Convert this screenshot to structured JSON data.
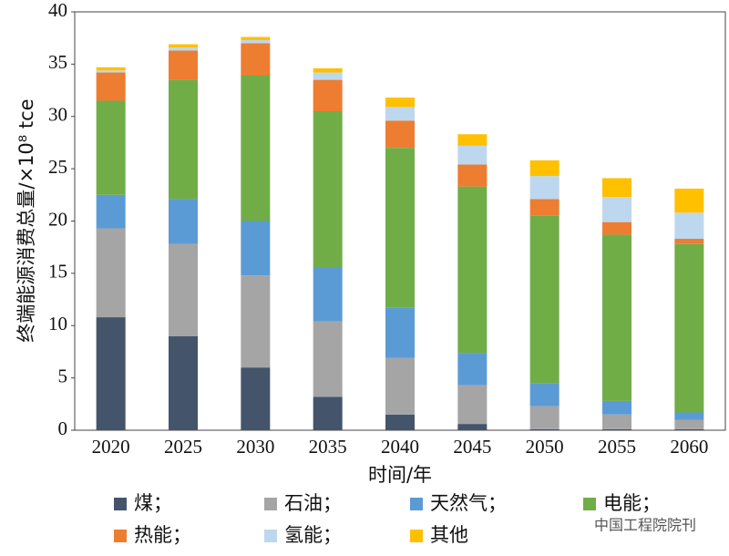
{
  "chart_data": {
    "type": "stacked_bar",
    "y_label": "终端能源消费总量/×10⁸ tce",
    "x_label": "时间/年",
    "categories": [
      "2020",
      "2025",
      "2030",
      "2035",
      "2040",
      "2045",
      "2050",
      "2055",
      "2060"
    ],
    "series": [
      {
        "name": "煤；",
        "color": "#44546a",
        "values": [
          10.8,
          9.0,
          6.0,
          3.2,
          1.5,
          0.6,
          0.1,
          0.1,
          0.1
        ]
      },
      {
        "name": "石油；",
        "color": "#a5a5a5",
        "values": [
          8.5,
          8.8,
          8.8,
          7.2,
          5.4,
          3.7,
          2.2,
          1.4,
          0.9
        ]
      },
      {
        "name": "天然气；",
        "color": "#5b9bd5",
        "values": [
          3.2,
          4.3,
          5.2,
          5.2,
          4.8,
          3.1,
          2.2,
          1.3,
          0.7
        ]
      },
      {
        "name": "电能；",
        "color": "#70ad47",
        "values": [
          9.0,
          11.4,
          13.9,
          14.9,
          15.3,
          15.9,
          16.0,
          15.9,
          16.1
        ]
      },
      {
        "name": "热能；",
        "color": "#ed7d31",
        "values": [
          2.7,
          2.8,
          3.1,
          3.0,
          2.6,
          2.1,
          1.6,
          1.2,
          0.5
        ]
      },
      {
        "name": "氢能；",
        "color": "#bdd7ee",
        "values": [
          0.2,
          0.3,
          0.3,
          0.7,
          1.3,
          1.8,
          2.2,
          2.4,
          2.5
        ]
      },
      {
        "name": "其他",
        "color": "#ffc000",
        "values": [
          0.3,
          0.3,
          0.3,
          0.4,
          0.9,
          1.1,
          1.5,
          1.8,
          2.3
        ]
      }
    ],
    "ylim": [
      0,
      40
    ],
    "yticks": [
      0,
      5,
      10,
      15,
      20,
      25,
      30,
      35,
      40
    ],
    "watermark": "中国工程院院刊"
  }
}
